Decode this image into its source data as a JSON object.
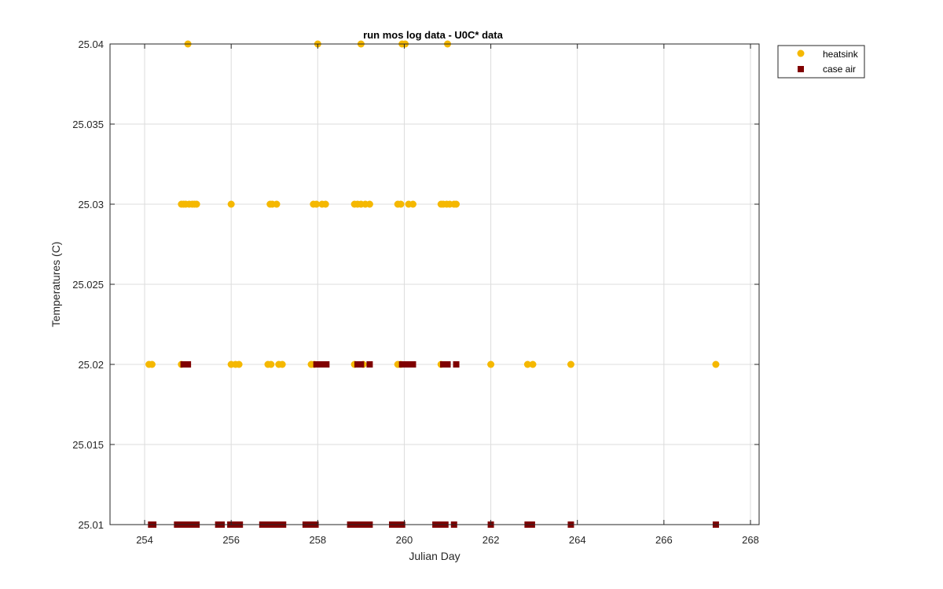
{
  "chart_data": {
    "type": "scatter",
    "title": "run mos log data - U0C* data",
    "xlabel": "Julian Day",
    "ylabel": "Temperatures (C)",
    "xlim": [
      253.2,
      268.2
    ],
    "ylim": [
      25.01,
      25.04
    ],
    "xticks": [
      254,
      256,
      258,
      260,
      262,
      264,
      266,
      268
    ],
    "yticks": [
      25.01,
      25.015,
      25.02,
      25.025,
      25.03,
      25.035,
      25.04
    ],
    "ytick_labels": [
      "25.01",
      "25.015",
      "25.02",
      "25.025",
      "25.03",
      "25.035",
      "25.04"
    ],
    "grid": true,
    "legend_position": "outside top-right",
    "series": [
      {
        "name": "heatsink",
        "marker": "circle",
        "color": "#F5B800",
        "points": [
          [
            255.0,
            25.04
          ],
          [
            258.0,
            25.04
          ],
          [
            259.0,
            25.04
          ],
          [
            259.95,
            25.04
          ],
          [
            260.02,
            25.04
          ],
          [
            261.0,
            25.04
          ],
          [
            254.85,
            25.03
          ],
          [
            254.9,
            25.03
          ],
          [
            254.95,
            25.03
          ],
          [
            255.03,
            25.03
          ],
          [
            255.1,
            25.03
          ],
          [
            255.15,
            25.03
          ],
          [
            255.2,
            25.03
          ],
          [
            256.0,
            25.03
          ],
          [
            256.9,
            25.03
          ],
          [
            256.95,
            25.03
          ],
          [
            257.05,
            25.03
          ],
          [
            257.9,
            25.03
          ],
          [
            257.97,
            25.03
          ],
          [
            258.1,
            25.03
          ],
          [
            258.18,
            25.03
          ],
          [
            258.85,
            25.03
          ],
          [
            258.92,
            25.03
          ],
          [
            259.0,
            25.03
          ],
          [
            259.1,
            25.03
          ],
          [
            259.2,
            25.03
          ],
          [
            259.85,
            25.03
          ],
          [
            259.92,
            25.03
          ],
          [
            260.1,
            25.03
          ],
          [
            260.2,
            25.03
          ],
          [
            260.85,
            25.03
          ],
          [
            260.9,
            25.03
          ],
          [
            260.98,
            25.03
          ],
          [
            261.05,
            25.03
          ],
          [
            261.15,
            25.03
          ],
          [
            261.2,
            25.03
          ],
          [
            254.1,
            25.02
          ],
          [
            254.17,
            25.02
          ],
          [
            254.85,
            25.02
          ],
          [
            256.0,
            25.02
          ],
          [
            256.1,
            25.02
          ],
          [
            256.18,
            25.02
          ],
          [
            256.85,
            25.02
          ],
          [
            256.92,
            25.02
          ],
          [
            257.1,
            25.02
          ],
          [
            257.18,
            25.02
          ],
          [
            257.85,
            25.02
          ],
          [
            257.92,
            25.02
          ],
          [
            258.85,
            25.02
          ],
          [
            259.05,
            25.02
          ],
          [
            259.85,
            25.02
          ],
          [
            259.92,
            25.02
          ],
          [
            260.85,
            25.02
          ],
          [
            262.0,
            25.02
          ],
          [
            262.85,
            25.02
          ],
          [
            262.97,
            25.02
          ],
          [
            263.85,
            25.02
          ],
          [
            267.2,
            25.02
          ]
        ]
      },
      {
        "name": "case air",
        "marker": "square",
        "color": "#800000",
        "points": [
          [
            254.9,
            25.02
          ],
          [
            255.0,
            25.02
          ],
          [
            257.97,
            25.02
          ],
          [
            258.05,
            25.02
          ],
          [
            258.12,
            25.02
          ],
          [
            258.2,
            25.02
          ],
          [
            258.92,
            25.02
          ],
          [
            259.0,
            25.02
          ],
          [
            259.2,
            25.02
          ],
          [
            259.95,
            25.02
          ],
          [
            260.05,
            25.02
          ],
          [
            260.12,
            25.02
          ],
          [
            260.2,
            25.02
          ],
          [
            260.9,
            25.02
          ],
          [
            261.0,
            25.02
          ],
          [
            261.2,
            25.02
          ],
          [
            254.15,
            25.01
          ],
          [
            254.2,
            25.01
          ],
          [
            254.75,
            25.01
          ],
          [
            254.82,
            25.01
          ],
          [
            254.9,
            25.01
          ],
          [
            254.98,
            25.01
          ],
          [
            255.12,
            25.01
          ],
          [
            255.2,
            25.01
          ],
          [
            255.7,
            25.01
          ],
          [
            255.78,
            25.01
          ],
          [
            255.98,
            25.01
          ],
          [
            256.05,
            25.01
          ],
          [
            256.12,
            25.01
          ],
          [
            256.2,
            25.01
          ],
          [
            256.72,
            25.01
          ],
          [
            256.8,
            25.01
          ],
          [
            256.88,
            25.01
          ],
          [
            256.95,
            25.01
          ],
          [
            257.03,
            25.01
          ],
          [
            257.12,
            25.01
          ],
          [
            257.2,
            25.01
          ],
          [
            257.72,
            25.01
          ],
          [
            257.8,
            25.01
          ],
          [
            257.88,
            25.01
          ],
          [
            257.95,
            25.01
          ],
          [
            258.75,
            25.01
          ],
          [
            258.82,
            25.01
          ],
          [
            258.9,
            25.01
          ],
          [
            258.98,
            25.01
          ],
          [
            259.05,
            25.01
          ],
          [
            259.12,
            25.01
          ],
          [
            259.2,
            25.01
          ],
          [
            259.72,
            25.01
          ],
          [
            259.8,
            25.01
          ],
          [
            259.88,
            25.01
          ],
          [
            259.95,
            25.01
          ],
          [
            260.72,
            25.01
          ],
          [
            260.8,
            25.01
          ],
          [
            260.88,
            25.01
          ],
          [
            260.95,
            25.01
          ],
          [
            261.15,
            25.01
          ],
          [
            262.0,
            25.01
          ],
          [
            262.85,
            25.01
          ],
          [
            262.95,
            25.01
          ],
          [
            263.85,
            25.01
          ],
          [
            267.2,
            25.01
          ]
        ]
      }
    ]
  }
}
